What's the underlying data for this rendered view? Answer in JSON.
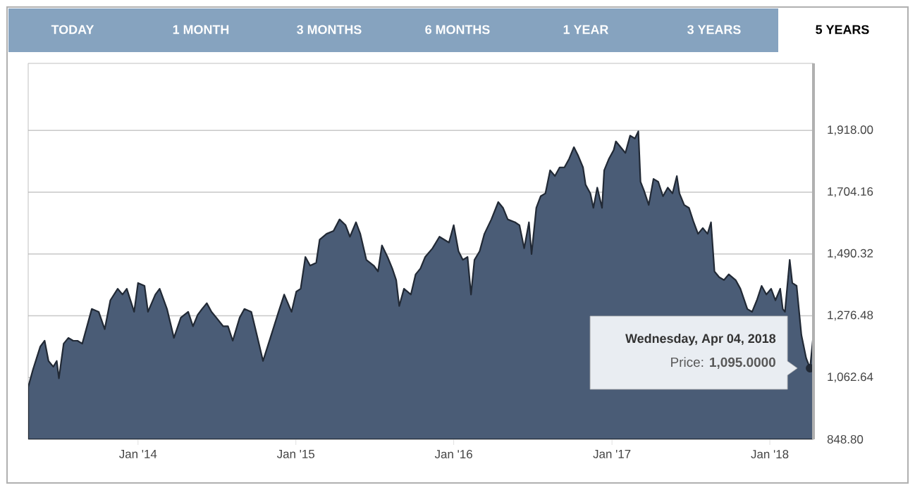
{
  "chart_data": {
    "type": "area",
    "color": "#4a5c76",
    "x": [
      "2013-04-22",
      "2013-05-03",
      "2013-05-20",
      "2013-05-30",
      "2013-06-08",
      "2013-06-19",
      "2013-06-27",
      "2013-07-02",
      "2013-07-13",
      "2013-07-24",
      "2013-08-04",
      "2013-08-14",
      "2013-08-25",
      "2013-09-05",
      "2013-09-16",
      "2013-10-02",
      "2013-10-16",
      "2013-10-29",
      "2013-11-15",
      "2013-11-26",
      "2013-12-06",
      "2013-12-23",
      "2014-01-01",
      "2014-01-16",
      "2014-01-24",
      "2014-02-10",
      "2014-02-20",
      "2014-03-09",
      "2014-03-25",
      "2014-04-10",
      "2014-04-27",
      "2014-05-08",
      "2014-05-19",
      "2014-05-29",
      "2014-06-09",
      "2014-06-20",
      "2014-07-01",
      "2014-07-17",
      "2014-07-28",
      "2014-08-08",
      "2014-08-24",
      "2014-09-04",
      "2014-09-20",
      "2014-10-06",
      "2014-10-17",
      "2014-11-03",
      "2014-11-22",
      "2014-12-05",
      "2014-12-22",
      "2015-01-02",
      "2015-01-12",
      "2015-01-23",
      "2015-02-03",
      "2015-02-17",
      "2015-02-25",
      "2015-03-13",
      "2015-03-29",
      "2015-04-12",
      "2015-04-26",
      "2015-05-06",
      "2015-05-20",
      "2015-05-30",
      "2015-06-13",
      "2015-06-30",
      "2015-07-10",
      "2015-07-19",
      "2015-08-01",
      "2015-08-12",
      "2015-08-21",
      "2015-08-28",
      "2015-09-08",
      "2015-09-24",
      "2015-10-05",
      "2015-10-16",
      "2015-10-27",
      "2015-11-13",
      "2015-11-29",
      "2015-12-10",
      "2015-12-21",
      "2016-01-01",
      "2016-01-12",
      "2016-01-22",
      "2016-02-02",
      "2016-02-10",
      "2016-02-18",
      "2016-03-01",
      "2016-03-12",
      "2016-03-28",
      "2016-04-13",
      "2016-04-24",
      "2016-05-05",
      "2016-05-22",
      "2016-06-01",
      "2016-06-12",
      "2016-06-23",
      "2016-06-29",
      "2016-07-10",
      "2016-07-20",
      "2016-07-31",
      "2016-08-11",
      "2016-08-22",
      "2016-09-02",
      "2016-09-13",
      "2016-09-24",
      "2016-10-05",
      "2016-10-15",
      "2016-10-26",
      "2016-11-01",
      "2016-11-12",
      "2016-11-19",
      "2016-11-28",
      "2016-12-09",
      "2016-12-14",
      "2016-12-25",
      "2017-01-05",
      "2017-01-10",
      "2017-01-21",
      "2017-02-01",
      "2017-02-12",
      "2017-02-23",
      "2017-03-03",
      "2017-03-08",
      "2017-03-16",
      "2017-03-27",
      "2017-04-07",
      "2017-04-18",
      "2017-04-29",
      "2017-05-10",
      "2017-05-21",
      "2017-05-31",
      "2017-06-06",
      "2017-06-17",
      "2017-06-28",
      "2017-07-09",
      "2017-07-19",
      "2017-07-30",
      "2017-08-10",
      "2017-08-18",
      "2017-08-26",
      "2017-09-06",
      "2017-09-17",
      "2017-09-28",
      "2017-10-14",
      "2017-10-25",
      "2017-11-10",
      "2017-11-21",
      "2017-12-02",
      "2017-12-13",
      "2017-12-24",
      "2018-01-04",
      "2018-01-14",
      "2018-01-25",
      "2018-01-31",
      "2018-02-05",
      "2018-02-16",
      "2018-02-22",
      "2018-03-04",
      "2018-03-15",
      "2018-03-26",
      "2018-04-04",
      "2018-04-11"
    ],
    "values": [
      1030,
      1090,
      1170,
      1190,
      1120,
      1100,
      1120,
      1060,
      1180,
      1200,
      1190,
      1190,
      1180,
      1240,
      1300,
      1290,
      1230,
      1330,
      1370,
      1350,
      1370,
      1290,
      1390,
      1380,
      1290,
      1350,
      1370,
      1300,
      1200,
      1270,
      1290,
      1240,
      1280,
      1300,
      1320,
      1290,
      1270,
      1240,
      1240,
      1190,
      1270,
      1300,
      1290,
      1190,
      1120,
      1200,
      1290,
      1350,
      1290,
      1360,
      1370,
      1480,
      1450,
      1460,
      1540,
      1560,
      1570,
      1610,
      1590,
      1550,
      1600,
      1560,
      1470,
      1450,
      1430,
      1520,
      1480,
      1440,
      1400,
      1310,
      1370,
      1350,
      1420,
      1440,
      1480,
      1510,
      1550,
      1540,
      1530,
      1590,
      1500,
      1470,
      1480,
      1350,
      1470,
      1500,
      1560,
      1610,
      1670,
      1650,
      1610,
      1600,
      1590,
      1510,
      1600,
      1490,
      1650,
      1690,
      1700,
      1780,
      1760,
      1790,
      1790,
      1820,
      1860,
      1830,
      1790,
      1730,
      1700,
      1650,
      1720,
      1650,
      1780,
      1820,
      1850,
      1880,
      1860,
      1840,
      1900,
      1890,
      1915,
      1740,
      1710,
      1660,
      1750,
      1740,
      1690,
      1720,
      1700,
      1760,
      1700,
      1660,
      1650,
      1600,
      1560,
      1580,
      1560,
      1600,
      1430,
      1410,
      1400,
      1420,
      1400,
      1370,
      1300,
      1290,
      1330,
      1380,
      1350,
      1370,
      1330,
      1370,
      1300,
      1290,
      1470,
      1390,
      1380,
      1210,
      1130,
      1095,
      1200
    ],
    "xlim": [
      "2013-04-22",
      "2018-04-12"
    ],
    "xticks": [
      {
        "value": "2014-01-01",
        "label": "Jan '14"
      },
      {
        "value": "2015-01-01",
        "label": "Jan '15"
      },
      {
        "value": "2016-01-01",
        "label": "Jan '16"
      },
      {
        "value": "2017-01-01",
        "label": "Jan '17"
      },
      {
        "value": "2018-01-01",
        "label": "Jan '18"
      }
    ],
    "ylim": [
      848.8,
      2150
    ],
    "yticks": [
      {
        "value": 848.8,
        "label": "848.80"
      },
      {
        "value": 1062.64,
        "label": "1,062.64"
      },
      {
        "value": 1276.48,
        "label": "1,276.48"
      },
      {
        "value": 1490.32,
        "label": "1,490.32"
      },
      {
        "value": 1704.16,
        "label": "1,704.16"
      },
      {
        "value": 1918.0,
        "label": "1,918.00"
      }
    ],
    "grid": "y",
    "annotations": [
      "TODAY",
      "1 MONTH",
      "3 MONTHS",
      "6 MONTHS",
      "1 YEAR",
      "3 YEARS",
      "5 YEARS",
      "Wednesday, Apr 04, 2018",
      {
        "text": "Price: **1,095.0000**",
        "x": "2018-04-04",
        "y": 1095
      }
    ]
  }
}
